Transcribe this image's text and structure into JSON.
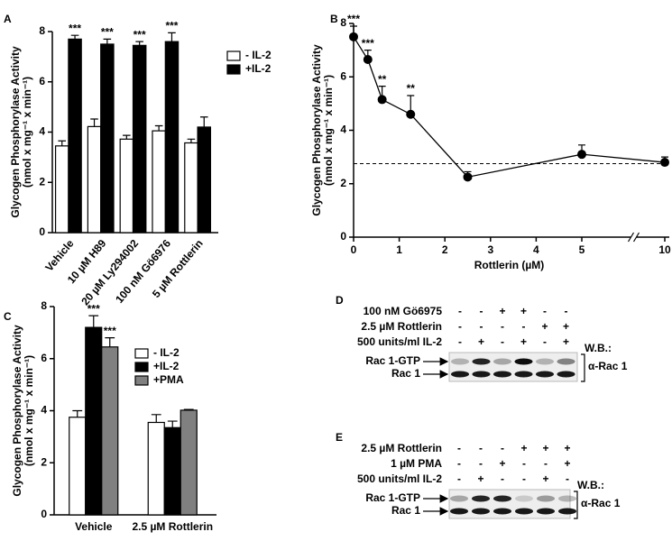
{
  "chart_data": [
    {
      "type": "bar",
      "panel": "A",
      "ylabel": [
        "Glycogen Phosphorylase Activity",
        "(nmol x mg⁻¹ x min⁻¹)"
      ],
      "categories": [
        "Vehicle",
        "10 µM H89",
        "20 µM Ly294002",
        "100 nM Gö6976",
        "5 µM Rottlerin"
      ],
      "series": [
        {
          "name": "- IL-2",
          "color": "#ffffff",
          "values": [
            3.45,
            4.22,
            3.72,
            4.05,
            3.57
          ],
          "errors": [
            0.2,
            0.3,
            0.15,
            0.2,
            0.15
          ],
          "significance": [
            null,
            null,
            null,
            null,
            null
          ]
        },
        {
          "name": "+IL-2",
          "color": "#000000",
          "values": [
            7.7,
            7.5,
            7.45,
            7.6,
            4.2
          ],
          "errors": [
            0.15,
            0.2,
            0.15,
            0.35,
            0.4
          ],
          "significance": [
            "***",
            "***",
            "***",
            "***",
            null
          ]
        }
      ],
      "ylim": [
        0,
        8
      ],
      "yticks": [
        0,
        2,
        4,
        6,
        8
      ],
      "legend": "right"
    },
    {
      "type": "line",
      "panel": "B",
      "ylabel": [
        "Glycogen Phosphorylase Activity",
        "(nmol x mg⁻¹ x min⁻¹)"
      ],
      "xlabel": "Rottlerin (µM)",
      "x": [
        0,
        0.3125,
        0.625,
        1.25,
        2.5,
        5,
        10
      ],
      "values": [
        7.5,
        6.65,
        5.15,
        4.6,
        2.25,
        3.1,
        2.8
      ],
      "errors": [
        0.4,
        0.35,
        0.5,
        0.7,
        0.2,
        0.35,
        0.2
      ],
      "significance": [
        "***",
        "***",
        "**",
        "**",
        null,
        null,
        null
      ],
      "color": "#000000",
      "hline": 2.75,
      "xlim": [
        0,
        10
      ],
      "xticks": [
        0,
        1,
        2,
        3,
        4,
        5,
        10
      ],
      "x_break": [
        6,
        9.5
      ],
      "ylim": [
        0,
        8
      ],
      "yticks": [
        0,
        2,
        4,
        6,
        8
      ]
    },
    {
      "type": "bar",
      "panel": "C",
      "ylabel": [
        "Glycogen Phosphorylase Activity",
        "(nmol x mg⁻¹ x min⁻¹)"
      ],
      "categories": [
        "Vehicle",
        "2.5 µM Rottlerin"
      ],
      "series": [
        {
          "name": "- IL-2",
          "color": "#ffffff",
          "values": [
            3.75,
            3.55
          ],
          "errors": [
            0.25,
            0.3
          ],
          "significance": [
            null,
            null
          ]
        },
        {
          "name": "+IL-2",
          "color": "#000000",
          "values": [
            7.2,
            3.35
          ],
          "errors": [
            0.45,
            0.25
          ],
          "significance": [
            "***",
            null
          ]
        },
        {
          "name": "+PMA",
          "color": "#808080",
          "values": [
            6.45,
            4.02
          ],
          "errors": [
            0.35,
            0.03
          ],
          "significance": [
            "***",
            null
          ]
        }
      ],
      "ylim": [
        0,
        8
      ],
      "yticks": [
        0,
        2,
        4,
        6,
        8
      ],
      "legend": "upper right"
    }
  ],
  "blots": [
    {
      "panel": "D",
      "conditions": [
        {
          "label": "100 nM Gö6975",
          "signs": [
            "-",
            "-",
            "+",
            "+",
            "-",
            "-"
          ]
        },
        {
          "label": "2.5 µM Rottlerin",
          "signs": [
            "-",
            "-",
            "-",
            "-",
            "+",
            "+"
          ]
        },
        {
          "label": "500 units/ml IL-2",
          "signs": [
            "-",
            "+",
            "-",
            "+",
            "-",
            "+"
          ]
        }
      ],
      "wb_label": "W.B.:",
      "bands": [
        "Rac 1-GTP",
        "Rac 1"
      ],
      "antibody": "α-Rac 1"
    },
    {
      "panel": "E",
      "conditions": [
        {
          "label": "2.5 µM Rottlerin",
          "signs": [
            "-",
            "-",
            "-",
            "+",
            "+",
            "+"
          ]
        },
        {
          "label": "1 µM PMA",
          "signs": [
            "-",
            "-",
            "+",
            "-",
            "-",
            "+"
          ]
        },
        {
          "label": "500 units/ml IL-2",
          "signs": [
            "-",
            "+",
            "-",
            "-",
            "+",
            "-"
          ]
        }
      ],
      "wb_label": "W.B.:",
      "bands": [
        "Rac 1-GTP",
        "Rac 1"
      ],
      "antibody": "α-Rac 1"
    }
  ]
}
